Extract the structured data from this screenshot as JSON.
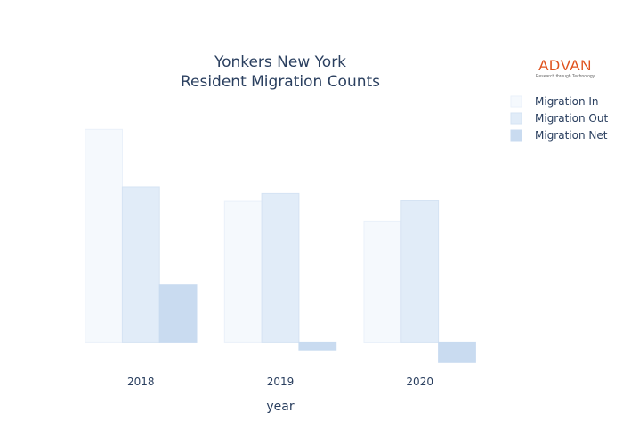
{
  "chart_data": {
    "type": "bar",
    "title": [
      "Yonkers New York",
      "Resident Migration Counts"
    ],
    "xlabel": "year",
    "ylabel": "",
    "categories": [
      "2018",
      "2019",
      "2020"
    ],
    "ylim": [
      -380,
      4000
    ],
    "grid": false,
    "legend_position": "top-right",
    "series": [
      {
        "name": "Migration In",
        "color": "#f5f9fd",
        "stroke": "#eaf1fa",
        "values": [
          3550,
          2350,
          2020
        ]
      },
      {
        "name": "Migration Out",
        "color": "#e1ecf8",
        "stroke": "#d5e3f3",
        "values": [
          2590,
          2480,
          2360
        ]
      },
      {
        "name": "Migration Net",
        "color": "#c9dbf0",
        "stroke": "#c9dbf0",
        "values": [
          960,
          -130,
          -340
        ]
      }
    ]
  },
  "logo": {
    "brand": "ADVAN",
    "tagline": "Research through Technology"
  }
}
